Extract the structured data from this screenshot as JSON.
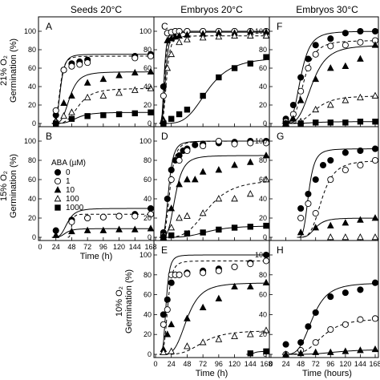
{
  "figure": {
    "column_headers": [
      "Seeds 20°C",
      "Embryos 20°C",
      "Embryos 30°C"
    ],
    "row_labels": [
      "21% O₂",
      "15% O₂",
      "10% O₂"
    ],
    "ylabel": "Germination (%)",
    "xlabels": [
      "Time (h)",
      "Time (h)",
      "Time (hours)"
    ],
    "x_ticks": [
      "0",
      "24",
      "48",
      "72",
      "96",
      "120",
      "144",
      "168"
    ],
    "y_ticks": [
      "0",
      "20",
      "40",
      "60",
      "80",
      "100"
    ],
    "legend_title": "ABA (µM)",
    "legend_items": [
      "0",
      "1",
      "10",
      "100",
      "1000"
    ],
    "series_markers": [
      "filled-circle",
      "open-circle",
      "filled-triangle",
      "open-triangle",
      "filled-square"
    ]
  },
  "chart_data": [
    {
      "panel": "A",
      "type": "scatter",
      "xlim": [
        0,
        168
      ],
      "ylim": [
        0,
        100
      ],
      "series": [
        {
          "name": "0",
          "x": [
            24,
            36,
            48,
            60,
            72,
            144,
            168
          ],
          "y": [
            9,
            58,
            65,
            67,
            69,
            73,
            75
          ]
        },
        {
          "name": "1",
          "x": [
            24,
            36,
            48,
            60,
            72,
            144,
            168
          ],
          "y": [
            14,
            58,
            62,
            64,
            66,
            71,
            73
          ]
        },
        {
          "name": "10",
          "x": [
            24,
            36,
            48,
            72,
            96,
            120,
            144,
            168
          ],
          "y": [
            3,
            22,
            30,
            44,
            48,
            52,
            55,
            56
          ]
        },
        {
          "name": "100",
          "x": [
            24,
            36,
            48,
            72,
            96,
            120,
            144,
            168
          ],
          "y": [
            2,
            8,
            12,
            28,
            30,
            33,
            36,
            38
          ]
        },
        {
          "name": "1000",
          "x": [
            24,
            48,
            72,
            96,
            120,
            144,
            168
          ],
          "y": [
            0,
            5,
            8,
            9,
            10,
            11,
            12
          ]
        }
      ]
    },
    {
      "panel": "B",
      "type": "scatter",
      "xlim": [
        0,
        168
      ],
      "ylim": [
        0,
        100
      ],
      "series": [
        {
          "name": "0",
          "x": [
            24,
            48,
            72,
            96,
            120,
            144,
            168
          ],
          "y": [
            7,
            18,
            20,
            21,
            22,
            24,
            30
          ]
        },
        {
          "name": "1",
          "x": [
            48,
            72,
            96,
            120,
            144,
            168
          ],
          "y": [
            16,
            20,
            21,
            22,
            22,
            24
          ]
        },
        {
          "name": "10",
          "x": [
            24,
            48,
            72,
            96,
            120,
            144,
            168
          ],
          "y": [
            2,
            6,
            7,
            7,
            8,
            8,
            9
          ]
        }
      ]
    },
    {
      "panel": "C",
      "type": "scatter",
      "xlim": [
        0,
        168
      ],
      "ylim": [
        0,
        100
      ],
      "series": [
        {
          "name": "0",
          "x": [
            12,
            18,
            24,
            30,
            36,
            48,
            72,
            96,
            120,
            144,
            168
          ],
          "y": [
            40,
            98,
            99,
            100,
            100,
            100,
            100,
            100,
            100,
            100,
            100
          ]
        },
        {
          "name": "1",
          "x": [
            12,
            18,
            24,
            30,
            36,
            48,
            72,
            96,
            120,
            144,
            168
          ],
          "y": [
            30,
            98,
            99,
            100,
            100,
            100,
            100,
            100,
            100,
            100,
            100
          ]
        },
        {
          "name": "10",
          "x": [
            12,
            18,
            24,
            30,
            36,
            48,
            72,
            96,
            120,
            144,
            168
          ],
          "y": [
            4,
            90,
            92,
            94,
            95,
            96,
            97,
            98,
            98,
            99,
            99
          ]
        },
        {
          "name": "100",
          "x": [
            12,
            18,
            24,
            36,
            48,
            72,
            96,
            120,
            144,
            168
          ],
          "y": [
            2,
            60,
            75,
            88,
            91,
            93,
            94,
            95,
            95,
            95
          ]
        },
        {
          "name": "1000",
          "x": [
            12,
            24,
            36,
            48,
            72,
            96,
            120,
            144,
            168
          ],
          "y": [
            0,
            5,
            10,
            15,
            30,
            50,
            60,
            65,
            72
          ]
        }
      ]
    },
    {
      "panel": "D",
      "type": "scatter",
      "xlim": [
        0,
        168
      ],
      "ylim": [
        0,
        100
      ],
      "series": [
        {
          "name": "0",
          "x": [
            12,
            18,
            24,
            30,
            36,
            42,
            48,
            60,
            72,
            96,
            120,
            144,
            168
          ],
          "y": [
            5,
            40,
            70,
            80,
            85,
            90,
            92,
            96,
            97,
            98,
            99,
            100,
            100
          ]
        },
        {
          "name": "1",
          "x": [
            12,
            24,
            36,
            48,
            72,
            96,
            120,
            144,
            168
          ],
          "y": [
            2,
            60,
            80,
            90,
            95,
            100,
            97,
            98,
            98
          ]
        },
        {
          "name": "10",
          "x": [
            12,
            24,
            36,
            48,
            60,
            72,
            96,
            120,
            144,
            168
          ],
          "y": [
            2,
            30,
            55,
            60,
            60,
            68,
            70,
            75,
            78,
            85
          ]
        },
        {
          "name": "100",
          "x": [
            12,
            24,
            36,
            48,
            72,
            96,
            120,
            144,
            168
          ],
          "y": [
            0,
            10,
            20,
            22,
            25,
            40,
            40,
            45,
            60
          ]
        },
        {
          "name": "1000",
          "x": [
            12,
            24,
            48,
            72,
            96,
            120,
            144,
            168
          ],
          "y": [
            0,
            2,
            4,
            5,
            8,
            10,
            11,
            12
          ]
        }
      ]
    },
    {
      "panel": "E",
      "type": "scatter",
      "xlim": [
        0,
        168
      ],
      "ylim": [
        0,
        100
      ],
      "series": [
        {
          "name": "0",
          "x": [
            12,
            18,
            24,
            30,
            36,
            48,
            72,
            96,
            120,
            144,
            168
          ],
          "y": [
            40,
            55,
            72,
            80,
            80,
            82,
            84,
            86,
            88,
            92,
            100
          ]
        },
        {
          "name": "1",
          "x": [
            12,
            18,
            24,
            30,
            36,
            48,
            72,
            96,
            120,
            144,
            168
          ],
          "y": [
            30,
            45,
            80,
            80,
            80,
            81,
            82,
            84,
            88,
            91,
            94
          ]
        },
        {
          "name": "10",
          "x": [
            12,
            18,
            24,
            48,
            72,
            96,
            120,
            144,
            168
          ],
          "y": [
            5,
            20,
            30,
            36,
            47,
            56,
            68,
            68,
            72
          ]
        },
        {
          "name": "100",
          "x": [
            12,
            24,
            48,
            72,
            96,
            120,
            144,
            168
          ],
          "y": [
            2,
            3,
            8,
            12,
            15,
            18,
            20,
            24
          ]
        },
        {
          "name": "1000",
          "x": [
            144,
            168
          ],
          "y": [
            1,
            3
          ]
        }
      ]
    },
    {
      "panel": "F",
      "type": "scatter",
      "xlim": [
        0,
        168
      ],
      "ylim": [
        0,
        100
      ],
      "series": [
        {
          "name": "0",
          "x": [
            24,
            36,
            48,
            60,
            72,
            96,
            120,
            144,
            168
          ],
          "y": [
            5,
            20,
            50,
            70,
            85,
            92,
            98,
            100,
            100
          ]
        },
        {
          "name": "1",
          "x": [
            24,
            36,
            48,
            60,
            72,
            96,
            120,
            144,
            168
          ],
          "y": [
            2,
            10,
            35,
            60,
            75,
            84,
            85,
            88,
            90
          ]
        },
        {
          "name": "10",
          "x": [
            24,
            36,
            48,
            72,
            96,
            120,
            144,
            168
          ],
          "y": [
            0,
            5,
            25,
            48,
            60,
            62,
            70,
            85
          ]
        },
        {
          "name": "100",
          "x": [
            24,
            48,
            72,
            96,
            120,
            144,
            168
          ],
          "y": [
            0,
            2,
            15,
            20,
            25,
            28,
            30
          ]
        },
        {
          "name": "1000",
          "x": [
            24,
            48,
            72,
            96,
            120,
            144,
            168
          ],
          "y": [
            0,
            0,
            1,
            1,
            1,
            2,
            2
          ]
        }
      ]
    },
    {
      "panel": "G",
      "type": "scatter",
      "xlim": [
        0,
        168
      ],
      "ylim": [
        0,
        100
      ],
      "series": [
        {
          "name": "0",
          "x": [
            48,
            60,
            72,
            84,
            96,
            120,
            144,
            168
          ],
          "y": [
            30,
            45,
            60,
            75,
            80,
            88,
            90,
            92
          ]
        },
        {
          "name": "1",
          "x": [
            48,
            60,
            72,
            96,
            120,
            144,
            168
          ],
          "y": [
            20,
            35,
            25,
            60,
            70,
            75,
            80
          ]
        },
        {
          "name": "10",
          "x": [
            48,
            72,
            96,
            120,
            144,
            168
          ],
          "y": [
            5,
            10,
            12,
            15,
            18,
            20
          ]
        },
        {
          "name": "100",
          "x": [
            96,
            120,
            144,
            168
          ],
          "y": [
            0,
            0,
            0,
            0
          ]
        }
      ]
    },
    {
      "panel": "H",
      "type": "scatter",
      "xlim": [
        0,
        168
      ],
      "ylim": [
        0,
        100
      ],
      "series": [
        {
          "name": "0",
          "x": [
            24,
            48,
            60,
            72,
            96,
            120,
            144,
            168
          ],
          "y": [
            10,
            12,
            28,
            42,
            58,
            62,
            65,
            72
          ]
        },
        {
          "name": "1",
          "x": [
            24,
            48,
            72,
            96,
            120,
            144,
            168
          ],
          "y": [
            0,
            4,
            12,
            25,
            30,
            35,
            36
          ]
        },
        {
          "name": "10",
          "x": [
            24,
            48,
            72,
            96,
            120,
            144,
            168
          ],
          "y": [
            0,
            1,
            2,
            2,
            3,
            4,
            5
          ]
        }
      ]
    }
  ]
}
